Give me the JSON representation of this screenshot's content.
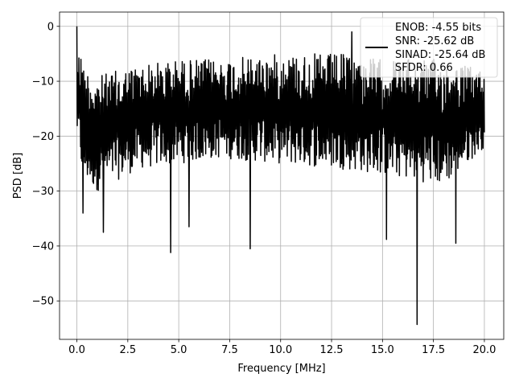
{
  "chart_data": {
    "type": "line",
    "title": "",
    "xlabel": "Frequency [MHz]",
    "ylabel": "PSD [dB]",
    "xlim": [
      -0.85,
      20.95
    ],
    "ylim": [
      -57.0,
      2.6
    ],
    "xticks": [
      0.0,
      2.5,
      5.0,
      7.5,
      10.0,
      12.5,
      15.0,
      17.5,
      20.0
    ],
    "xtick_labels": [
      "0.0",
      "2.5",
      "5.0",
      "7.5",
      "10.0",
      "12.5",
      "15.0",
      "17.5",
      "20.0"
    ],
    "yticks": [
      0,
      -10,
      -20,
      -30,
      -40,
      -50
    ],
    "ytick_labels": [
      "0",
      "−10",
      "−20",
      "−30",
      "−40",
      "−50"
    ],
    "grid": true,
    "legend_position": "top-right",
    "legend_lines": [
      "ENOB: -4.55 bits",
      "SNR: -25.62 dB",
      "SINAD: -25.64 dB",
      "SFDR: 0.66"
    ],
    "line_color": "#000000",
    "series": [
      {
        "name": "ENOB: -4.55 bits\nSNR: -25.62 dB\nSINAD: -25.64 dB\nSFDR: 0.66",
        "x_start": 0.0,
        "x_end": 20.0,
        "band_x": [
          0.0,
          0.3,
          1.0,
          2.0,
          3.0,
          5.0,
          7.0,
          10.0,
          13.0,
          15.0,
          18.0,
          20.0
        ],
        "band_upper": [
          -3,
          -7,
          -9,
          -8,
          -7,
          -6,
          -6,
          -5,
          -5,
          -6,
          -6,
          -8
        ],
        "band_lower": [
          -20,
          -28,
          -30,
          -28,
          -26,
          -25,
          -24,
          -25,
          -26,
          -27,
          -29,
          -22
        ],
        "peaks": [
          [
            0.0,
            0.0
          ],
          [
            0.2,
            -6.0
          ],
          [
            13.5,
            -1.0
          ]
        ],
        "dips": [
          [
            0.3,
            -34.0
          ],
          [
            1.3,
            -37.5
          ],
          [
            4.6,
            -41.2
          ],
          [
            5.5,
            -36.5
          ],
          [
            8.5,
            -40.5
          ],
          [
            15.2,
            -38.8
          ],
          [
            16.7,
            -54.3
          ],
          [
            18.6,
            -39.5
          ]
        ],
        "n_points": 1200
      }
    ]
  }
}
